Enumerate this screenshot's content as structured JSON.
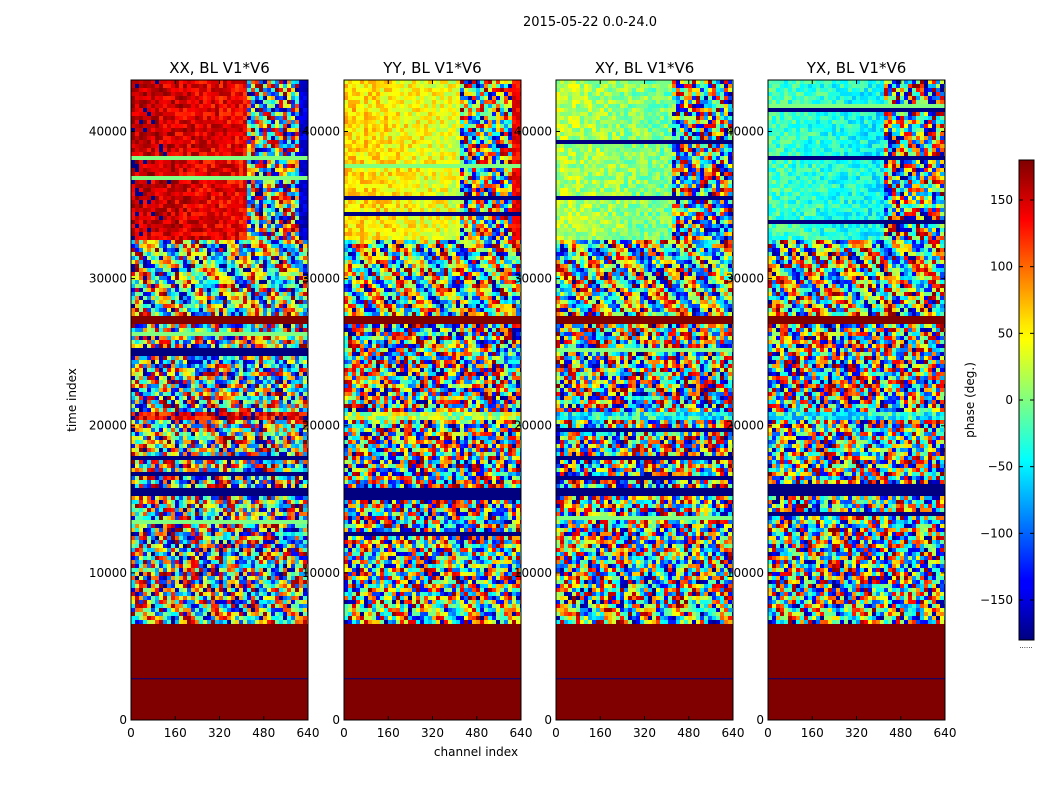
{
  "figure": {
    "suptitle": "2015-05-22 0.0-24.0",
    "xlabel": "channel index",
    "ylabel": "time index",
    "colorbar_label": "phase (deg.)",
    "colorbar_extra": "......"
  },
  "chart_data": {
    "type": "heatmap",
    "description_note": "4 phase waterfall panels (channel vs time), jet colormap",
    "panels": [
      {
        "title": "XX, BL V1*V6",
        "pol": "XX"
      },
      {
        "title": "YY, BL V1*V6",
        "pol": "YY"
      },
      {
        "title": "XY, BL V1*V6",
        "pol": "XY"
      },
      {
        "title": "YX, BL V1*V6",
        "pol": "YX"
      }
    ],
    "x": {
      "label": "channel index",
      "range": [
        0,
        640
      ],
      "ticks": [
        0,
        160,
        320,
        480,
        640
      ]
    },
    "y": {
      "label": "time index",
      "range": [
        0,
        43500
      ],
      "ticks": [
        0,
        10000,
        20000,
        30000,
        40000
      ]
    },
    "colorbar": {
      "label": "phase (deg.)",
      "range": [
        -180,
        180
      ],
      "ticks": [
        -150,
        -100,
        -50,
        0,
        50,
        100,
        150
      ],
      "tick_labels": [
        "−150",
        "−100",
        "−50",
        "0",
        "50",
        "100",
        "150"
      ],
      "colormap": "jet"
    },
    "time_bands": [
      {
        "y0": 0,
        "y1": 6400,
        "kind": "flagged",
        "phase": 180
      },
      {
        "y0": 6400,
        "y1": 8000,
        "kind": "noisy_fringes"
      },
      {
        "y0": 8000,
        "y1": 15200,
        "kind": "noisy_with_stripes"
      },
      {
        "y0": 15200,
        "y1": 15900,
        "kind": "flagged_stripe",
        "phase": -180
      },
      {
        "y0": 15900,
        "y1": 26800,
        "kind": "noisy_with_stripes"
      },
      {
        "y0": 20300,
        "y1": 20800,
        "kind": "coherent_stripe"
      },
      {
        "y0": 26800,
        "y1": 27400,
        "kind": "flagged_stripe",
        "phase": 180
      },
      {
        "y0": 27400,
        "y1": 32500,
        "kind": "noisy_fringes"
      },
      {
        "y0": 32500,
        "y1": 43500,
        "kind": "coherent_block"
      }
    ],
    "coherent_block_phase": {
      "XX": 160,
      "YY": 60,
      "XY": 20,
      "YX": -20
    }
  }
}
